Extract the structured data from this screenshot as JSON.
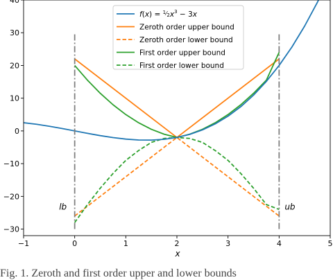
{
  "chart_data": {
    "type": "line",
    "xlabel": "x",
    "ylabel": "",
    "xlim": [
      -1,
      5
    ],
    "ylim": [
      -32,
      40
    ],
    "xticks": [
      -1,
      0,
      1,
      2,
      3,
      4,
      5
    ],
    "yticks": [
      -30,
      -20,
      -10,
      0,
      10,
      20,
      30,
      40
    ],
    "grid": false,
    "legend_position": "top-center",
    "series": [
      {
        "name": "f(x) = ½x³ − 3x",
        "legend_label": {
          "pre": "f(x) = ",
          "num": "1",
          "den": "2",
          "mid": "x",
          "exp": "3",
          "post": " − 3x"
        },
        "color": "#1f77b4",
        "style": "solid",
        "points": [
          [
            -1,
            2.5
          ],
          [
            -0.75,
            2.04
          ],
          [
            -0.5,
            1.44
          ],
          [
            -0.25,
            0.74
          ],
          [
            0,
            0
          ],
          [
            0.25,
            -0.74
          ],
          [
            0.5,
            -1.44
          ],
          [
            0.75,
            -2.04
          ],
          [
            1,
            -2.5
          ],
          [
            1.25,
            -2.77
          ],
          [
            1.5,
            -2.81
          ],
          [
            1.75,
            -2.57
          ],
          [
            2,
            -2
          ],
          [
            2.25,
            -1.05
          ],
          [
            2.5,
            0.31
          ],
          [
            2.75,
            2.15
          ],
          [
            3,
            4.5
          ],
          [
            3.25,
            7.41
          ],
          [
            3.5,
            10.94
          ],
          [
            3.75,
            15.12
          ],
          [
            4,
            20
          ],
          [
            4.25,
            25.63
          ],
          [
            4.5,
            32.06
          ],
          [
            4.75,
            39.33
          ],
          [
            4.8,
            40.9
          ]
        ]
      },
      {
        "name": "Zeroth order upper bound",
        "color": "#ff7f0e",
        "style": "solid",
        "points": [
          [
            0,
            22
          ],
          [
            2,
            -2
          ],
          [
            4,
            22
          ]
        ]
      },
      {
        "name": "Zeroth order lower bound",
        "color": "#ff7f0e",
        "style": "dashed",
        "points": [
          [
            0,
            -26
          ],
          [
            2,
            -2
          ],
          [
            4,
            -26
          ]
        ]
      },
      {
        "name": "First order upper bound",
        "color": "#2ca02c",
        "style": "solid",
        "points": [
          [
            0,
            20
          ],
          [
            0.25,
            15.5
          ],
          [
            0.5,
            11.5
          ],
          [
            0.75,
            8
          ],
          [
            1,
            5
          ],
          [
            1.25,
            2.5
          ],
          [
            1.5,
            0.5
          ],
          [
            1.75,
            -1
          ],
          [
            2,
            -2
          ],
          [
            2.25,
            -1
          ],
          [
            2.5,
            0.5
          ],
          [
            2.75,
            2.5
          ],
          [
            3,
            5
          ],
          [
            3.25,
            8
          ],
          [
            3.5,
            11.5
          ],
          [
            3.75,
            15.5
          ],
          [
            4,
            24
          ]
        ]
      },
      {
        "name": "First order lower bound",
        "color": "#2ca02c",
        "style": "dashed",
        "points": [
          [
            0,
            -28
          ],
          [
            0.25,
            -22.5
          ],
          [
            0.5,
            -17.5
          ],
          [
            0.75,
            -13
          ],
          [
            1,
            -9
          ],
          [
            1.25,
            -6
          ],
          [
            1.5,
            -3.5
          ],
          [
            1.75,
            -2.3
          ],
          [
            2,
            -2
          ],
          [
            2.25,
            -2.3
          ],
          [
            2.5,
            -3.5
          ],
          [
            2.75,
            -6
          ],
          [
            3,
            -9
          ],
          [
            3.25,
            -13
          ],
          [
            3.5,
            -17.5
          ],
          [
            3.75,
            -22.5
          ],
          [
            4,
            -24
          ]
        ]
      }
    ],
    "bounds": [
      {
        "label": "lb",
        "x": 0,
        "y_range": [
          -30,
          30
        ],
        "color": "#808080",
        "style": "dashdot"
      },
      {
        "label": "ub",
        "x": 4,
        "y_range": [
          -30,
          30
        ],
        "color": "#808080",
        "style": "dashdot"
      }
    ]
  },
  "caption": "Fig. 1.   Zeroth and first order upper and lower bounds"
}
